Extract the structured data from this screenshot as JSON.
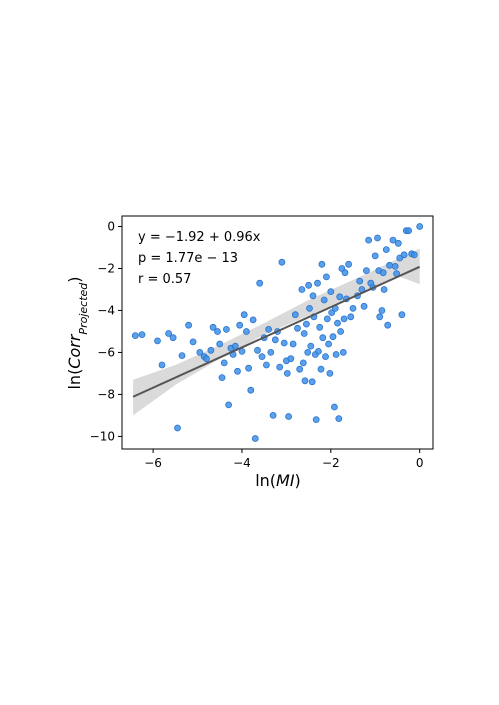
{
  "chart_data": {
    "type": "scatter",
    "xlabel": "ln(MI)",
    "ylabel": "ln(Corr_Projected)",
    "xlabel_parts": {
      "prefix": "ln(",
      "var": "MI",
      "suffix": ")"
    },
    "ylabel_parts": {
      "prefix": "ln(",
      "var": "Corr",
      "sub": "Projected",
      "suffix": ")"
    },
    "xlim": [
      -6.7,
      0.3
    ],
    "ylim": [
      -10.6,
      0.5
    ],
    "xticks": [
      -6,
      -4,
      -2,
      0
    ],
    "yticks": [
      0,
      -2,
      -4,
      -6,
      -8,
      -10
    ],
    "xtick_labels": [
      "−6",
      "−4",
      "−2",
      "0"
    ],
    "ytick_labels": [
      "0",
      "−2",
      "−4",
      "−6",
      "−8",
      "−10"
    ],
    "grid": false,
    "annotations": [
      "y = −1.92 + 0.96x",
      "p = 1.77e − 13",
      "r = 0.57"
    ],
    "regression": {
      "intercept": -1.92,
      "slope": 0.96,
      "x_range": [
        -6.45,
        0.0
      ],
      "ci_lower": [
        [
          -6.45,
          -9.0
        ],
        [
          -5.5,
          -7.55
        ],
        [
          -4.5,
          -6.3
        ],
        [
          -3.5,
          -5.15
        ],
        [
          -2.5,
          -4.25
        ],
        [
          -1.5,
          -3.3
        ],
        [
          -0.5,
          -2.35
        ],
        [
          0.0,
          -2.75
        ]
      ],
      "ci_upper": [
        [
          -6.45,
          -7.3
        ],
        [
          -5.5,
          -6.6
        ],
        [
          -4.5,
          -5.65
        ],
        [
          -3.5,
          -4.6
        ],
        [
          -2.5,
          -3.5
        ],
        [
          -1.5,
          -2.55
        ],
        [
          -0.5,
          -1.55
        ],
        [
          0.0,
          -1.05
        ]
      ]
    },
    "colors": {
      "points": "#3d8fe8",
      "points_edge": "#2b74cc",
      "line": "#555555",
      "band": "#d3d3d3"
    },
    "points": [
      [
        -6.4,
        -5.2
      ],
      [
        -6.25,
        -5.15
      ],
      [
        -5.9,
        -5.45
      ],
      [
        -5.8,
        -6.6
      ],
      [
        -5.65,
        -5.1
      ],
      [
        -5.55,
        -5.3
      ],
      [
        -5.45,
        -9.6
      ],
      [
        -5.35,
        -6.15
      ],
      [
        -5.2,
        -4.7
      ],
      [
        -5.1,
        -5.5
      ],
      [
        -4.95,
        -6.0
      ],
      [
        -4.85,
        -6.2
      ],
      [
        -4.8,
        -6.3
      ],
      [
        -4.7,
        -5.9
      ],
      [
        -4.65,
        -4.8
      ],
      [
        -4.55,
        -5.0
      ],
      [
        -4.5,
        -5.6
      ],
      [
        -4.45,
        -7.2
      ],
      [
        -4.4,
        -6.5
      ],
      [
        -4.35,
        -4.9
      ],
      [
        -4.3,
        -8.5
      ],
      [
        -4.25,
        -5.8
      ],
      [
        -4.2,
        -6.1
      ],
      [
        -4.15,
        -5.7
      ],
      [
        -4.1,
        -6.9
      ],
      [
        -4.05,
        -4.7
      ],
      [
        -4.0,
        -5.95
      ],
      [
        -3.95,
        -4.2
      ],
      [
        -3.9,
        -5.0
      ],
      [
        -3.85,
        -6.75
      ],
      [
        -3.8,
        -7.8
      ],
      [
        -3.75,
        -4.45
      ],
      [
        -3.7,
        -10.1
      ],
      [
        -3.65,
        -5.9
      ],
      [
        -3.6,
        -2.7
      ],
      [
        -3.55,
        -6.2
      ],
      [
        -3.5,
        -5.3
      ],
      [
        -3.45,
        -6.6
      ],
      [
        -3.4,
        -4.9
      ],
      [
        -3.35,
        -6.0
      ],
      [
        -3.3,
        -9.0
      ],
      [
        -3.25,
        -5.4
      ],
      [
        -3.2,
        -5.0
      ],
      [
        -3.15,
        -6.7
      ],
      [
        -3.1,
        -1.7
      ],
      [
        -3.05,
        -5.55
      ],
      [
        -3.0,
        -6.4
      ],
      [
        -2.98,
        -7.0
      ],
      [
        -2.95,
        -9.05
      ],
      [
        -2.9,
        -6.3
      ],
      [
        -2.85,
        -5.6
      ],
      [
        -2.8,
        -4.2
      ],
      [
        -2.75,
        -4.85
      ],
      [
        -2.7,
        -6.8
      ],
      [
        -2.65,
        -3.0
      ],
      [
        -2.62,
        -6.5
      ],
      [
        -2.6,
        -5.1
      ],
      [
        -2.58,
        -7.35
      ],
      [
        -2.55,
        -4.65
      ],
      [
        -2.52,
        -6.0
      ],
      [
        -2.5,
        -2.8
      ],
      [
        -2.48,
        -3.9
      ],
      [
        -2.45,
        -5.7
      ],
      [
        -2.42,
        -7.4
      ],
      [
        -2.4,
        -3.3
      ],
      [
        -2.38,
        -4.3
      ],
      [
        -2.35,
        -6.1
      ],
      [
        -2.33,
        -9.2
      ],
      [
        -2.3,
        -2.7
      ],
      [
        -2.28,
        -5.95
      ],
      [
        -2.25,
        -4.8
      ],
      [
        -2.22,
        -6.8
      ],
      [
        -2.2,
        -1.8
      ],
      [
        -2.18,
        -5.3
      ],
      [
        -2.15,
        -3.5
      ],
      [
        -2.12,
        -6.2
      ],
      [
        -2.1,
        -2.4
      ],
      [
        -2.08,
        -4.4
      ],
      [
        -2.05,
        -5.6
      ],
      [
        -2.02,
        -7.0
      ],
      [
        -2.0,
        -3.1
      ],
      [
        -1.98,
        -4.1
      ],
      [
        -1.95,
        -5.25
      ],
      [
        -1.92,
        -8.6
      ],
      [
        -1.9,
        -3.9
      ],
      [
        -1.88,
        -6.1
      ],
      [
        -1.85,
        -4.6
      ],
      [
        -1.82,
        -9.15
      ],
      [
        -1.8,
        -3.35
      ],
      [
        -1.78,
        -5.0
      ],
      [
        -1.75,
        -2.0
      ],
      [
        -1.72,
        -6.0
      ],
      [
        -1.7,
        -4.4
      ],
      [
        -1.68,
        -2.2
      ],
      [
        -1.65,
        -3.45
      ],
      [
        -1.6,
        -1.8
      ],
      [
        -1.55,
        -4.3
      ],
      [
        -1.5,
        -3.9
      ],
      [
        -1.4,
        -3.3
      ],
      [
        -1.35,
        -2.6
      ],
      [
        -1.3,
        -3.0
      ],
      [
        -1.25,
        -3.8
      ],
      [
        -1.2,
        -2.1
      ],
      [
        -1.15,
        -0.65
      ],
      [
        -1.1,
        -2.7
      ],
      [
        -1.05,
        -2.9
      ],
      [
        -1.0,
        -1.4
      ],
      [
        -0.95,
        -0.55
      ],
      [
        -0.92,
        -2.1
      ],
      [
        -0.9,
        -4.3
      ],
      [
        -0.85,
        -4.0
      ],
      [
        -0.82,
        -2.2
      ],
      [
        -0.8,
        -3.0
      ],
      [
        -0.75,
        -1.1
      ],
      [
        -0.72,
        -4.7
      ],
      [
        -0.68,
        -1.85
      ],
      [
        -0.6,
        -0.65
      ],
      [
        -0.55,
        -1.9
      ],
      [
        -0.52,
        -2.25
      ],
      [
        -0.48,
        -0.8
      ],
      [
        -0.45,
        -1.5
      ],
      [
        -0.4,
        -4.2
      ],
      [
        -0.35,
        -1.35
      ],
      [
        -0.3,
        -0.2
      ],
      [
        -0.25,
        -0.2
      ],
      [
        -0.18,
        -1.3
      ],
      [
        -0.12,
        -1.35
      ],
      [
        0.0,
        0.0
      ]
    ]
  }
}
